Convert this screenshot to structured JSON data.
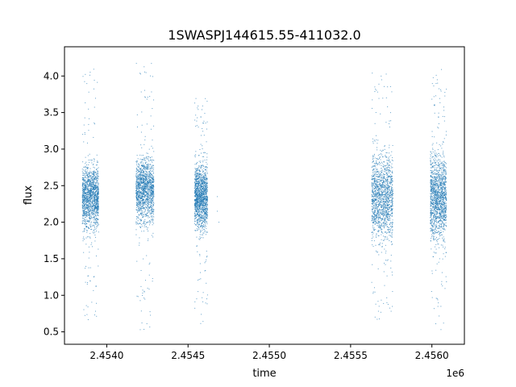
{
  "chart_data": {
    "type": "scatter",
    "title": "1SWASPJ144615.55-411032.0",
    "xlabel": "time",
    "ylabel": "flux",
    "x_offset_label": "1e6",
    "xlim": [
      2453740,
      2456200
    ],
    "ylim": [
      0.33,
      4.4
    ],
    "xticks": [
      2454000,
      2454500,
      2455000,
      2455500,
      2456000
    ],
    "xtick_labels": [
      "2.4540",
      "2.4545",
      "2.4550",
      "2.4555",
      "2.4560"
    ],
    "yticks": [
      0.5,
      1.0,
      1.5,
      2.0,
      2.5,
      3.0,
      3.5,
      4.0
    ],
    "ytick_labels": [
      "0.5",
      "1.0",
      "1.5",
      "2.0",
      "2.5",
      "3.0",
      "3.5",
      "4.0"
    ],
    "grid": false,
    "marker_color": "#1f77b4",
    "observing_seasons": [
      {
        "x_range": [
          2453850,
          2453950
        ],
        "y_core": [
          1.8,
          2.9
        ],
        "y_extent": [
          0.55,
          4.25
        ]
      },
      {
        "x_range": [
          2454180,
          2454290
        ],
        "y_core": [
          1.9,
          3.0
        ],
        "y_extent": [
          0.5,
          4.2
        ]
      },
      {
        "x_range": [
          2454540,
          2454620
        ],
        "y_core": [
          1.8,
          2.9
        ],
        "y_extent": [
          0.55,
          3.7
        ]
      },
      {
        "x_range": [
          2455630,
          2455760
        ],
        "y_core": [
          1.6,
          3.1
        ],
        "y_extent": [
          0.65,
          4.05
        ]
      },
      {
        "x_range": [
          2455990,
          2456090
        ],
        "y_core": [
          1.6,
          3.1
        ],
        "y_extent": [
          0.52,
          4.15
        ]
      }
    ],
    "isolated_points": [
      {
        "x": 2454680,
        "y": 2.35
      },
      {
        "x": 2454680,
        "y": 2.15
      },
      {
        "x": 2454690,
        "y": 2.0
      }
    ]
  }
}
